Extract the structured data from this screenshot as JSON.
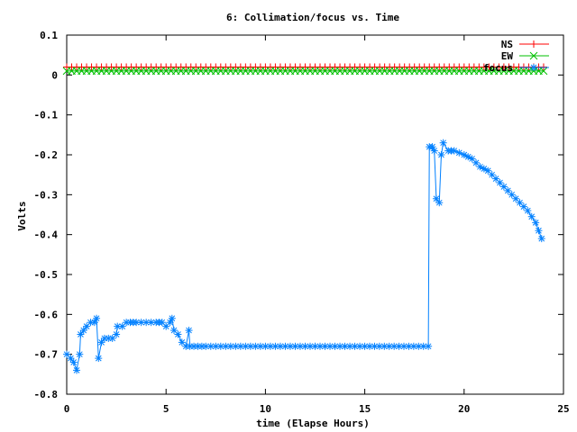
{
  "chart_data": {
    "type": "line",
    "title": "6: Collimation/focus vs. Time",
    "xlabel": "time (Elapse Hours)",
    "ylabel": "Volts",
    "xlim": [
      0,
      25
    ],
    "ylim": [
      -0.8,
      0.1
    ],
    "xticks": [
      0,
      5,
      10,
      15,
      20,
      25
    ],
    "xtick_labels": [
      "0",
      "5",
      "10",
      "15",
      "20",
      "25"
    ],
    "yticks": [
      0.1,
      0,
      -0.1,
      -0.2,
      -0.3,
      -0.4,
      -0.5,
      -0.6,
      -0.7,
      -0.8
    ],
    "ytick_labels": [
      "0.1",
      "0",
      "-0.1",
      "-0.2",
      "-0.3",
      "-0.4",
      "-0.5",
      "-0.6",
      "-0.7",
      "-0.8"
    ],
    "grid": false,
    "legend_position": "top-right",
    "series": [
      {
        "name": "NS",
        "color": "#ff0000",
        "marker": "plus",
        "points": [
          [
            0,
            0.02
          ],
          [
            24,
            0.02
          ]
        ],
        "marker_step": 0.25
      },
      {
        "name": "EW",
        "color": "#00c000",
        "marker": "x",
        "points": [
          [
            0,
            0.01
          ],
          [
            24,
            0.01
          ]
        ],
        "marker_step": 0.25
      },
      {
        "name": "focus",
        "color": "#0080ff",
        "marker": "star",
        "marker_step": 0.25,
        "points": [
          [
            0.0,
            -0.7
          ],
          [
            0.2,
            -0.71
          ],
          [
            0.35,
            -0.72
          ],
          [
            0.5,
            -0.74
          ],
          [
            0.65,
            -0.7
          ],
          [
            0.7,
            -0.65
          ],
          [
            0.85,
            -0.64
          ],
          [
            1.0,
            -0.63
          ],
          [
            1.2,
            -0.62
          ],
          [
            1.4,
            -0.62
          ],
          [
            1.5,
            -0.61
          ],
          [
            1.6,
            -0.71
          ],
          [
            1.75,
            -0.67
          ],
          [
            1.9,
            -0.66
          ],
          [
            2.1,
            -0.66
          ],
          [
            2.3,
            -0.66
          ],
          [
            2.5,
            -0.65
          ],
          [
            2.55,
            -0.63
          ],
          [
            2.8,
            -0.63
          ],
          [
            3.0,
            -0.62
          ],
          [
            3.2,
            -0.62
          ],
          [
            3.5,
            -0.62
          ],
          [
            4.0,
            -0.62
          ],
          [
            4.5,
            -0.62
          ],
          [
            4.8,
            -0.62
          ],
          [
            5.0,
            -0.63
          ],
          [
            5.2,
            -0.62
          ],
          [
            5.3,
            -0.61
          ],
          [
            5.4,
            -0.64
          ],
          [
            5.6,
            -0.65
          ],
          [
            5.8,
            -0.67
          ],
          [
            6.0,
            -0.68
          ],
          [
            6.15,
            -0.64
          ],
          [
            6.2,
            -0.68
          ],
          [
            7.0,
            -0.68
          ],
          [
            9.0,
            -0.68
          ],
          [
            12.0,
            -0.68
          ],
          [
            15.0,
            -0.68
          ],
          [
            18.2,
            -0.68
          ],
          [
            18.25,
            -0.18
          ],
          [
            18.4,
            -0.18
          ],
          [
            18.5,
            -0.19
          ],
          [
            18.6,
            -0.31
          ],
          [
            18.75,
            -0.32
          ],
          [
            18.85,
            -0.2
          ],
          [
            18.95,
            -0.17
          ],
          [
            19.2,
            -0.19
          ],
          [
            19.5,
            -0.19
          ],
          [
            20.0,
            -0.2
          ],
          [
            20.4,
            -0.21
          ],
          [
            20.8,
            -0.23
          ],
          [
            21.2,
            -0.24
          ],
          [
            21.6,
            -0.26
          ],
          [
            22.0,
            -0.28
          ],
          [
            22.4,
            -0.3
          ],
          [
            22.8,
            -0.32
          ],
          [
            23.2,
            -0.34
          ],
          [
            23.6,
            -0.37
          ],
          [
            23.9,
            -0.41
          ]
        ]
      }
    ]
  }
}
